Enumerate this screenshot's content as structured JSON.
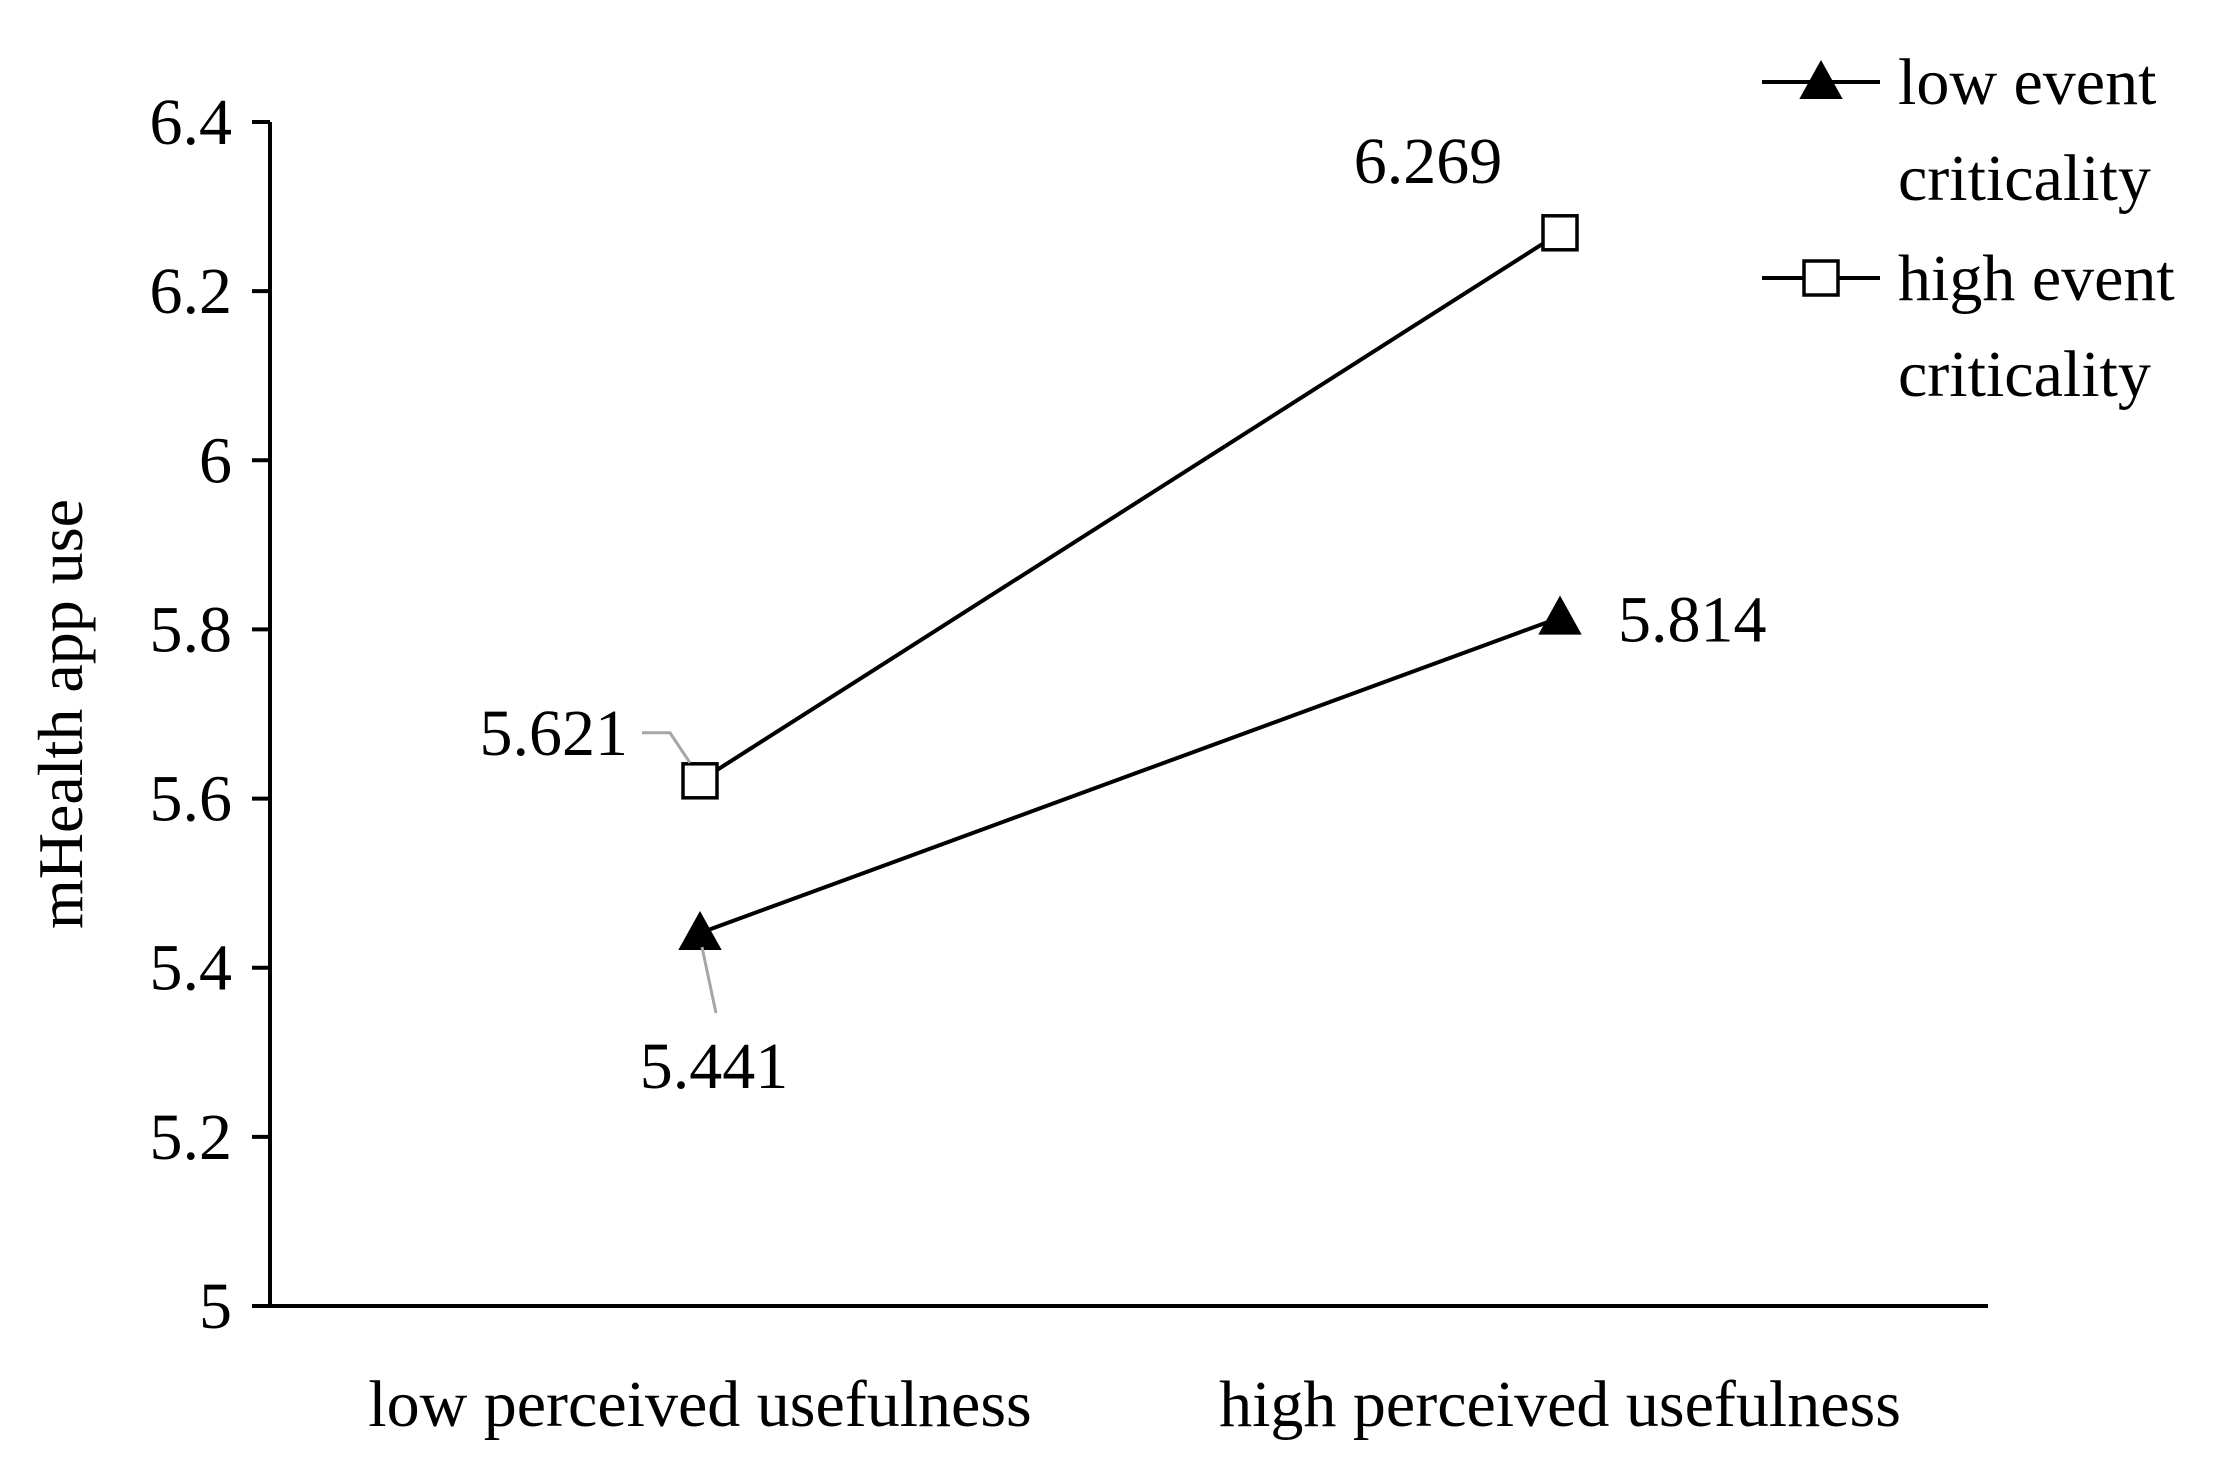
{
  "chart_data": {
    "type": "line",
    "title": "",
    "xlabel": "",
    "ylabel": "mHealth app use",
    "categories": [
      "low perceived usefulness",
      "high perceived usefulness"
    ],
    "ylim": [
      5,
      6.4
    ],
    "yticks": [
      5,
      5.2,
      5.4,
      5.6,
      5.8,
      6,
      6.2,
      6.4
    ],
    "ytick_labels": [
      "5",
      "5.2",
      "5.4",
      "5.6",
      "5.8",
      "6",
      "6.2",
      "6.4"
    ],
    "grid": false,
    "legend_position": "top-right",
    "series": [
      {
        "name": "low event criticality",
        "name_lines": [
          "low event",
          "criticality"
        ],
        "marker": "filled-triangle",
        "color": "#000000",
        "values": [
          5.441,
          5.814
        ],
        "data_labels": [
          "5.441",
          "5.814"
        ]
      },
      {
        "name": "high event criticality",
        "name_lines": [
          "high event",
          "criticality"
        ],
        "marker": "open-square",
        "color": "#000000",
        "values": [
          5.621,
          6.269
        ],
        "data_labels": [
          "5.621",
          "6.269"
        ]
      }
    ]
  }
}
